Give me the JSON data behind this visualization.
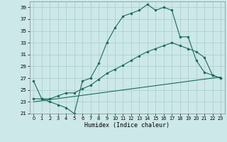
{
  "xlabel": "Humidex (Indice chaleur)",
  "bg_color": "#cce8e8",
  "grid_color": "#aacccc",
  "line_color": "#1a6b5a",
  "xlim": [
    -0.5,
    23.5
  ],
  "ylim": [
    21,
    40
  ],
  "yticks": [
    21,
    23,
    25,
    27,
    29,
    31,
    33,
    35,
    37,
    39
  ],
  "xticks": [
    0,
    1,
    2,
    3,
    4,
    5,
    6,
    7,
    8,
    9,
    10,
    11,
    12,
    13,
    14,
    15,
    16,
    17,
    18,
    19,
    20,
    21,
    22,
    23
  ],
  "series1_x": [
    0,
    1,
    2,
    3,
    4,
    5,
    6,
    7,
    8,
    9,
    10,
    11,
    12,
    13,
    14,
    15,
    16,
    17,
    18,
    19,
    20,
    21,
    22,
    23
  ],
  "series1_y": [
    26.5,
    23.5,
    23.0,
    22.5,
    22.0,
    21.0,
    26.5,
    27.0,
    29.5,
    33.0,
    35.5,
    37.5,
    38.0,
    38.5,
    39.5,
    38.5,
    39.0,
    38.5,
    34.0,
    34.0,
    30.0,
    28.0,
    27.5,
    27.0
  ],
  "series2_x": [
    0,
    1,
    2,
    3,
    4,
    5,
    6,
    7,
    8,
    9,
    10,
    11,
    12,
    13,
    14,
    15,
    16,
    17,
    18,
    19,
    20,
    21,
    22,
    23
  ],
  "series2_y": [
    23.5,
    23.5,
    23.5,
    24.0,
    24.5,
    24.5,
    25.2,
    25.8,
    26.8,
    27.8,
    28.5,
    29.2,
    30.0,
    30.8,
    31.5,
    32.0,
    32.5,
    33.0,
    32.5,
    32.0,
    31.5,
    30.5,
    27.5,
    27.0
  ],
  "series3_x": [
    0,
    23
  ],
  "series3_y": [
    23.0,
    27.2
  ]
}
